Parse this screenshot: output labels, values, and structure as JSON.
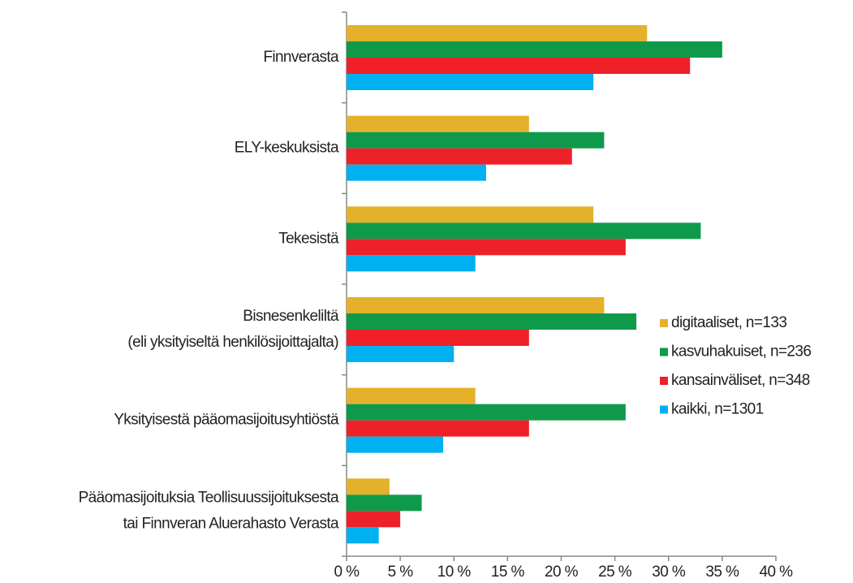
{
  "chart_data": {
    "type": "bar",
    "orientation": "horizontal",
    "categories": [
      [
        "Finnverasta"
      ],
      [
        "ELY-keskuksista"
      ],
      [
        "Tekesistä"
      ],
      [
        "Bisnesenkeliltä",
        "(eli yksityiseltä henkilösijoittajalta)"
      ],
      [
        "Yksityisestä pääomasijoitusyhtiöstä"
      ],
      [
        "Pääomasijoituksia Teollisuussijoituksesta",
        "tai Finnveran Aluerahasto Verasta"
      ]
    ],
    "series": [
      {
        "name": "digitaaliset, n=133",
        "color": "#e5b12a",
        "values": [
          28,
          17,
          23,
          24,
          12,
          4
        ]
      },
      {
        "name": "kasvuhakuiset, n=236",
        "color": "#0e9a4a",
        "values": [
          35,
          24,
          33,
          27,
          26,
          7
        ]
      },
      {
        "name": "kansainväliset, n=348",
        "color": "#ee2028",
        "values": [
          32,
          21,
          26,
          17,
          17,
          5
        ]
      },
      {
        "name": "kaikki, n=1301",
        "color": "#00b0f0",
        "values": [
          23,
          13,
          12,
          10,
          9,
          3
        ]
      }
    ],
    "xlim": [
      0,
      40
    ],
    "xticks": [
      {
        "value": 0,
        "label": "0 %"
      },
      {
        "value": 5,
        "label": "5 %"
      },
      {
        "value": 10,
        "label": "10 %"
      },
      {
        "value": 15,
        "label": "15 %"
      },
      {
        "value": 20,
        "label": "20 %"
      },
      {
        "value": 25,
        "label": "25 %"
      },
      {
        "value": 30,
        "label": "30 %"
      },
      {
        "value": 35,
        "label": "35 %"
      },
      {
        "value": 40,
        "label": "40 %"
      }
    ],
    "legend_position": "right",
    "grid": false
  }
}
